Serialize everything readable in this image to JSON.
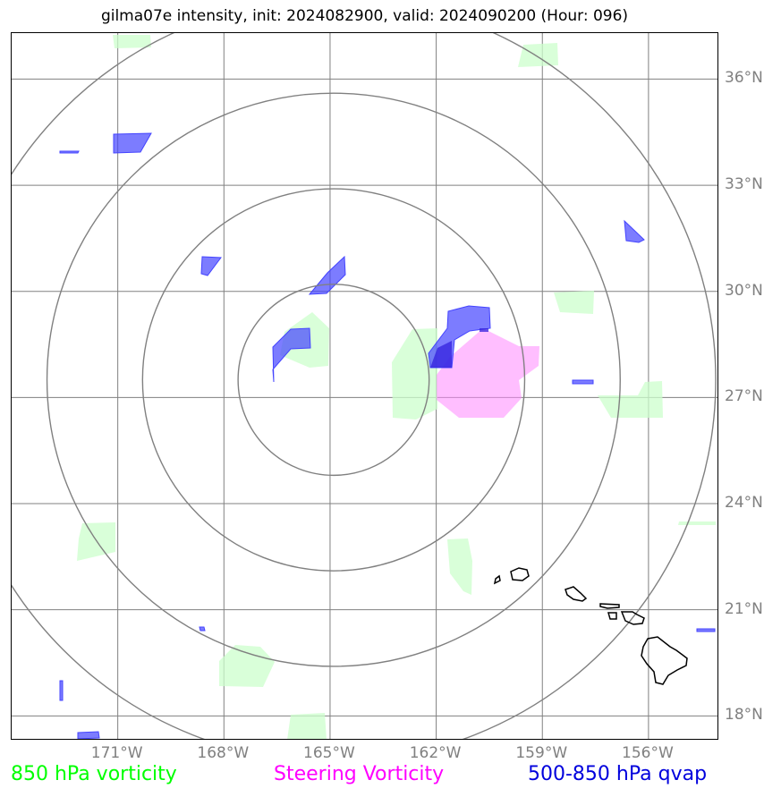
{
  "title": "gilma07e intensity, init: 2024082900, valid: 2024090200 (Hour: 096)",
  "map": {
    "lat_ticks": [
      {
        "value": 36,
        "label": "36°N"
      },
      {
        "value": 33,
        "label": "33°N"
      },
      {
        "value": 30,
        "label": "30°N"
      },
      {
        "value": 27,
        "label": "27°N"
      },
      {
        "value": 24,
        "label": "24°N"
      },
      {
        "value": 21,
        "label": "21°N"
      },
      {
        "value": 18,
        "label": "18°N"
      }
    ],
    "lon_ticks": [
      {
        "value": -171,
        "label": "171°W"
      },
      {
        "value": -168,
        "label": "168°W"
      },
      {
        "value": -165,
        "label": "165°W"
      },
      {
        "value": -162,
        "label": "162°W"
      },
      {
        "value": -159,
        "label": "159°W"
      },
      {
        "value": -156,
        "label": "156°W"
      }
    ],
    "extent": {
      "lon_min": -174.0,
      "lon_max": -154.0,
      "lat_min": 17.3,
      "lat_max": 37.3
    },
    "range_ring_center": {
      "lon": -164.9,
      "lat": 27.5
    },
    "range_ring_radii_deg": [
      2.7,
      5.4,
      8.1,
      10.8
    ],
    "colors": {
      "vorticity_850": "#ccffcc",
      "steering_vorticity": "#ff88ff",
      "qvap": "#4444ff",
      "grid": "#808080",
      "coast": "#000000"
    }
  },
  "legend": {
    "vort850": {
      "label": "850 hPa vorticity",
      "color": "#00ff00"
    },
    "steering": {
      "label": "Steering Vorticity",
      "color": "#ff00ff"
    },
    "qvap": {
      "label": "500-850 hPa qvap",
      "color": "#0000dd"
    }
  }
}
